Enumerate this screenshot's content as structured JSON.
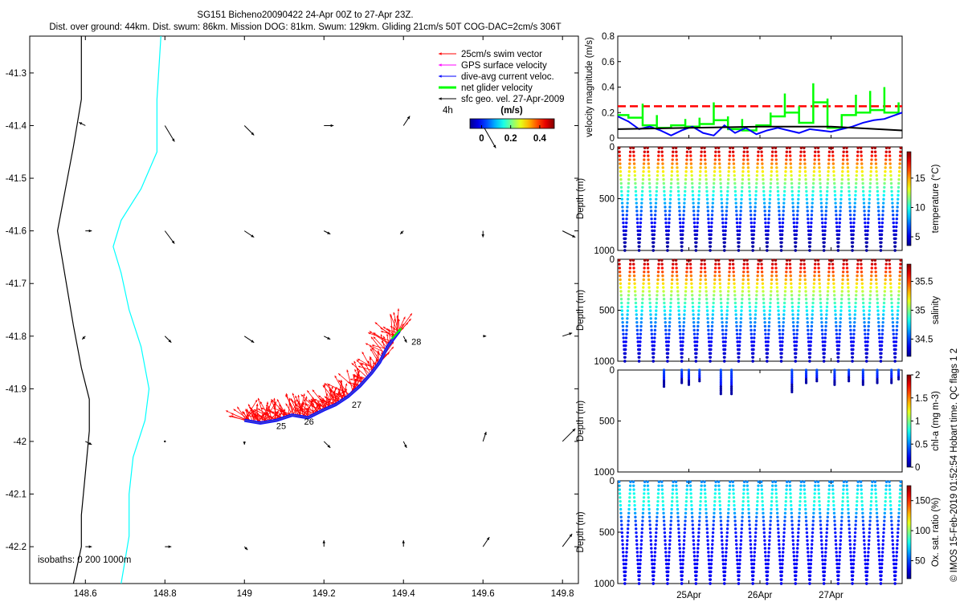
{
  "header": {
    "line1": "SG151 Bicheno20090422 24-Apr 00Z to 27-Apr 23Z.",
    "line2": "Dist. over ground: 44km. Dist. swum: 86km. Mission DOG: 81km. Swum: 129km. Gliding 21cm/s 50T COG-DAC=2cm/s 306T"
  },
  "side_caption": "© IMOS 15-Feb-2019 01:52:54 Hobart time. QC flags 1  2",
  "chart_data": [
    {
      "type": "map",
      "xlim": [
        148.46,
        149.84
      ],
      "ylim": [
        -42.27,
        -41.23
      ],
      "x_ticks": [
        148.6,
        148.8,
        149,
        149.2,
        149.4,
        149.6,
        149.8
      ],
      "x_tick_labels": [
        "148.6",
        "148.8",
        "149",
        "149.2",
        "149.4",
        "149.6",
        "149.8"
      ],
      "y_ticks": [
        -41.3,
        -41.4,
        -41.5,
        -41.6,
        -41.7,
        -41.8,
        -41.9,
        -42,
        -42.1,
        -42.2
      ],
      "y_tick_labels": [
        "-41.3",
        "-41.4",
        "-41.5",
        "-41.6",
        "-41.7",
        "-41.8",
        "-41.9",
        "-42",
        "-42.1",
        "-42.2"
      ],
      "legend": {
        "placement": "top-right",
        "entries": [
          {
            "label": "25cm/s swim vector",
            "color": "#ff0000"
          },
          {
            "label": "GPS surface velocity",
            "color": "#ff00ff"
          },
          {
            "label": "dive-avg current veloc.",
            "color": "#0000ff"
          },
          {
            "label": "net glider velocity",
            "color": "#00ff00"
          },
          {
            "label": "sfc geo. vel. 27-Apr-2009",
            "color": "#000000"
          }
        ],
        "time_step_label": "4h"
      },
      "colorbar": {
        "title": "(m/s)",
        "range": [
          -0.08,
          0.5
        ],
        "tick_labels": [
          "0",
          "0.2",
          "0.4"
        ],
        "ticks": [
          0,
          0.2,
          0.4
        ]
      },
      "isobath_label": "isobaths: 0   200  1000m",
      "isobath_200": [
        [
          148.79,
          -41.23
        ],
        [
          148.78,
          -41.35
        ],
        [
          148.78,
          -41.45
        ],
        [
          148.74,
          -41.52
        ],
        [
          148.69,
          -41.58
        ],
        [
          148.67,
          -41.63
        ],
        [
          148.69,
          -41.68
        ],
        [
          148.71,
          -41.75
        ],
        [
          148.74,
          -41.82
        ],
        [
          148.76,
          -41.9
        ],
        [
          148.75,
          -41.96
        ],
        [
          148.72,
          -42.03
        ],
        [
          148.71,
          -42.1
        ],
        [
          148.71,
          -42.18
        ],
        [
          148.69,
          -42.27
        ]
      ],
      "isobath_1000": [
        [
          148.59,
          -41.23
        ],
        [
          148.59,
          -41.35
        ],
        [
          148.57,
          -41.44
        ],
        [
          148.55,
          -41.52
        ],
        [
          148.53,
          -41.6
        ],
        [
          148.55,
          -41.69
        ],
        [
          148.57,
          -41.78
        ],
        [
          148.59,
          -41.86
        ],
        [
          148.61,
          -41.92
        ],
        [
          148.61,
          -41.98
        ],
        [
          148.6,
          -42.06
        ],
        [
          148.59,
          -42.14
        ],
        [
          148.59,
          -42.2
        ],
        [
          148.57,
          -42.27
        ]
      ],
      "geo_vectors": [
        [
          148.6,
          -41.4,
          -0.02,
          0.01
        ],
        [
          148.8,
          -41.4,
          0.03,
          -0.05
        ],
        [
          149,
          -41.4,
          0.03,
          -0.03
        ],
        [
          149.2,
          -41.4,
          0.03,
          0.0
        ],
        [
          149.4,
          -41.4,
          0.02,
          0.03
        ],
        [
          149.6,
          -41.4,
          0.04,
          -0.07
        ],
        [
          148.6,
          -41.6,
          0.02,
          0.0
        ],
        [
          148.8,
          -41.6,
          0.03,
          -0.04
        ],
        [
          149,
          -41.6,
          0.03,
          -0.02
        ],
        [
          149.2,
          -41.6,
          0.02,
          -0.01
        ],
        [
          149.4,
          -41.6,
          -0.01,
          -0.01
        ],
        [
          149.6,
          -41.6,
          0.0,
          -0.02
        ],
        [
          149.8,
          -41.6,
          0.04,
          -0.02
        ],
        [
          148.6,
          -41.8,
          -0.01,
          -0.01
        ],
        [
          148.8,
          -41.8,
          0.02,
          -0.02
        ],
        [
          149,
          -41.8,
          0.03,
          -0.02
        ],
        [
          149.2,
          -41.8,
          0.02,
          -0.01
        ],
        [
          149.4,
          -41.8,
          0.01,
          -0.02
        ],
        [
          149.6,
          -41.8,
          0.01,
          0.0
        ],
        [
          149.8,
          -41.8,
          0.03,
          0.01
        ],
        [
          148.6,
          -42,
          0.02,
          -0.01
        ],
        [
          148.8,
          -42,
          0.0,
          0.0
        ],
        [
          149,
          -42,
          0.0,
          -0.01
        ],
        [
          149.2,
          -42,
          0.02,
          -0.02
        ],
        [
          149.4,
          -42,
          0.01,
          -0.02
        ],
        [
          149.6,
          -42,
          0.01,
          0.03
        ],
        [
          149.8,
          -42,
          0.04,
          0.04
        ],
        [
          148.6,
          -42.2,
          0.02,
          0.0
        ],
        [
          148.8,
          -42.2,
          0.02,
          0.0
        ],
        [
          149,
          -42.2,
          0.01,
          -0.01
        ],
        [
          149.2,
          -42.2,
          0.0,
          0.02
        ],
        [
          149.4,
          -42.2,
          0.0,
          0.02
        ],
        [
          149.6,
          -42.2,
          0.02,
          0.03
        ],
        [
          149.8,
          -42.2,
          0.03,
          0.04
        ]
      ],
      "track": [
        [
          149.0,
          -41.96
        ],
        [
          149.04,
          -41.965
        ],
        [
          149.08,
          -41.96
        ],
        [
          149.12,
          -41.95
        ],
        [
          149.16,
          -41.955
        ],
        [
          149.2,
          -41.94
        ],
        [
          149.23,
          -41.93
        ],
        [
          149.26,
          -41.915
        ],
        [
          149.29,
          -41.895
        ],
        [
          149.32,
          -41.87
        ],
        [
          149.34,
          -41.85
        ],
        [
          149.36,
          -41.82
        ],
        [
          149.38,
          -41.8
        ],
        [
          149.39,
          -41.79
        ]
      ],
      "day_labels": [
        {
          "text": "25",
          "x": 149.08,
          "y": -41.97
        },
        {
          "text": "26",
          "x": 149.15,
          "y": -41.962
        },
        {
          "text": "27",
          "x": 149.27,
          "y": -41.93
        },
        {
          "text": "28",
          "x": 149.42,
          "y": -41.81
        }
      ]
    },
    {
      "type": "line",
      "ylabel": "velocity magnitude (m/s)",
      "ylim": [
        0,
        0.8
      ],
      "y_ticks": [
        0,
        0.2,
        0.4,
        0.6,
        0.8
      ],
      "y_tick_labels": [
        "0",
        "0.2",
        "0.4",
        "0.6",
        "0.8"
      ],
      "xlim": [
        0,
        4
      ],
      "swim_reference": 0.25,
      "series": [
        {
          "color": "#ff0000",
          "style": "dashed",
          "x": [
            0,
            4
          ],
          "y": [
            0.25,
            0.25
          ]
        },
        {
          "color": "#00ff00",
          "style": "step",
          "x": [
            0.15,
            0.35,
            0.55,
            0.75,
            0.95,
            1.15,
            1.35,
            1.55,
            1.75,
            1.95,
            2.15,
            2.35,
            2.55,
            2.75,
            2.95,
            3.15,
            3.35,
            3.55,
            3.75,
            3.95
          ],
          "y": [
            0.18,
            0.16,
            0.1,
            0.08,
            0.1,
            0.09,
            0.11,
            0.14,
            0.07,
            0.06,
            0.1,
            0.17,
            0.2,
            0.12,
            0.28,
            0.08,
            0.18,
            0.2,
            0.22,
            0.2
          ],
          "peaks": [
            0.18,
            0.27,
            0.18,
            0.08,
            0.15,
            0.16,
            0.28,
            0.17,
            0.15,
            0.1,
            0.2,
            0.35,
            0.25,
            0.43,
            0.31,
            0.1,
            0.34,
            0.37,
            0.4,
            0.28
          ]
        },
        {
          "color": "#0000ff",
          "style": "line",
          "x": [
            0,
            0.15,
            0.3,
            0.45,
            0.6,
            0.75,
            0.9,
            1.05,
            1.2,
            1.35,
            1.5,
            1.65,
            1.8,
            1.95,
            2.1,
            2.25,
            2.4,
            2.55,
            2.7,
            2.85,
            3.0,
            3.15,
            3.3,
            3.45,
            3.6,
            3.75,
            3.9,
            4.0
          ],
          "y": [
            0.17,
            0.13,
            0.07,
            0.09,
            0.06,
            0.02,
            0.06,
            0.09,
            0.04,
            0.02,
            0.1,
            0.04,
            0.08,
            0.03,
            0.06,
            0.08,
            0.06,
            0.04,
            0.07,
            0.06,
            0.05,
            0.07,
            0.09,
            0.12,
            0.14,
            0.15,
            0.18,
            0.2
          ]
        },
        {
          "color": "#000000",
          "style": "line",
          "x": [
            0,
            1,
            2,
            3,
            4
          ],
          "y": [
            0.07,
            0.08,
            0.09,
            0.09,
            0.06
          ]
        }
      ]
    },
    {
      "type": "scatter",
      "variable": "temperature",
      "ylabel": "Depth (m)",
      "clabel": "temperature (°C)",
      "ylim": [
        1000,
        0
      ],
      "y_ticks": [
        0,
        500,
        1000
      ],
      "y_tick_labels": [
        "0",
        "500",
        "1000"
      ],
      "crange": [
        3.5,
        19.5
      ],
      "c_ticks": [
        5,
        10,
        15
      ],
      "c_tick_labels": [
        "5",
        "10",
        "15"
      ],
      "dives": 20,
      "top": 10,
      "bottom": 1000,
      "cmin": 3.8,
      "cmax": 19,
      "profile": "thermo"
    },
    {
      "type": "scatter",
      "variable": "salinity",
      "ylabel": "Depth (m)",
      "clabel": "salinity",
      "ylim": [
        1000,
        0
      ],
      "y_ticks": [
        0,
        500,
        1000
      ],
      "y_tick_labels": [
        "0",
        "500",
        "1000"
      ],
      "crange": [
        34.2,
        35.8
      ],
      "c_ticks": [
        34.5,
        35,
        35.5
      ],
      "c_tick_labels": [
        "34.5",
        "35",
        "35.5"
      ],
      "dives": 20,
      "top": 10,
      "bottom": 1000,
      "cmin": 34.3,
      "cmax": 35.75,
      "profile": "thermo"
    },
    {
      "type": "scatter",
      "variable": "chl-a",
      "ylabel": "Depth (m)",
      "clabel": "chl-a (mg m-3)",
      "ylim": [
        1000,
        0
      ],
      "y_ticks": [
        0,
        500,
        1000
      ],
      "y_tick_labels": [
        "0",
        "500",
        "1000"
      ],
      "crange": [
        0,
        2
      ],
      "c_ticks": [
        0,
        0.5,
        1,
        1.5,
        2
      ],
      "c_tick_labels": [
        "0",
        "0.5",
        "1",
        "1.5",
        "2"
      ],
      "casts": [
        [
          0.65,
          0,
          170
        ],
        [
          0.9,
          0,
          130
        ],
        [
          1.0,
          0,
          160
        ],
        [
          1.15,
          0,
          120
        ],
        [
          1.45,
          0,
          250
        ],
        [
          1.6,
          0,
          250
        ],
        [
          2.45,
          0,
          220
        ],
        [
          2.65,
          0,
          140
        ],
        [
          2.8,
          0,
          120
        ],
        [
          3.05,
          0,
          150
        ],
        [
          3.25,
          0,
          110
        ],
        [
          3.45,
          0,
          150
        ],
        [
          3.65,
          0,
          130
        ],
        [
          3.85,
          0,
          140
        ],
        [
          3.95,
          0,
          100
        ]
      ]
    },
    {
      "type": "scatter",
      "variable": "oxygen saturation",
      "ylabel": "Depth (m)",
      "clabel": "Ox. sat. ratio (%)",
      "ylim": [
        1000,
        0
      ],
      "y_ticks": [
        0,
        500,
        1000
      ],
      "y_tick_labels": [
        "0",
        "500",
        "1000"
      ],
      "crange": [
        20,
        175
      ],
      "c_ticks": [
        50,
        100,
        150
      ],
      "c_tick_labels": [
        "50",
        "100",
        "150"
      ],
      "dives": 20,
      "top": 10,
      "bottom": 1000,
      "cmin": 25,
      "cmax": 105,
      "profile": "oxy"
    }
  ],
  "time_axis": {
    "xlim": [
      0,
      4
    ],
    "ticks": [
      1,
      2,
      3
    ],
    "tick_labels": [
      "25Apr",
      "26Apr",
      "27Apr"
    ]
  }
}
